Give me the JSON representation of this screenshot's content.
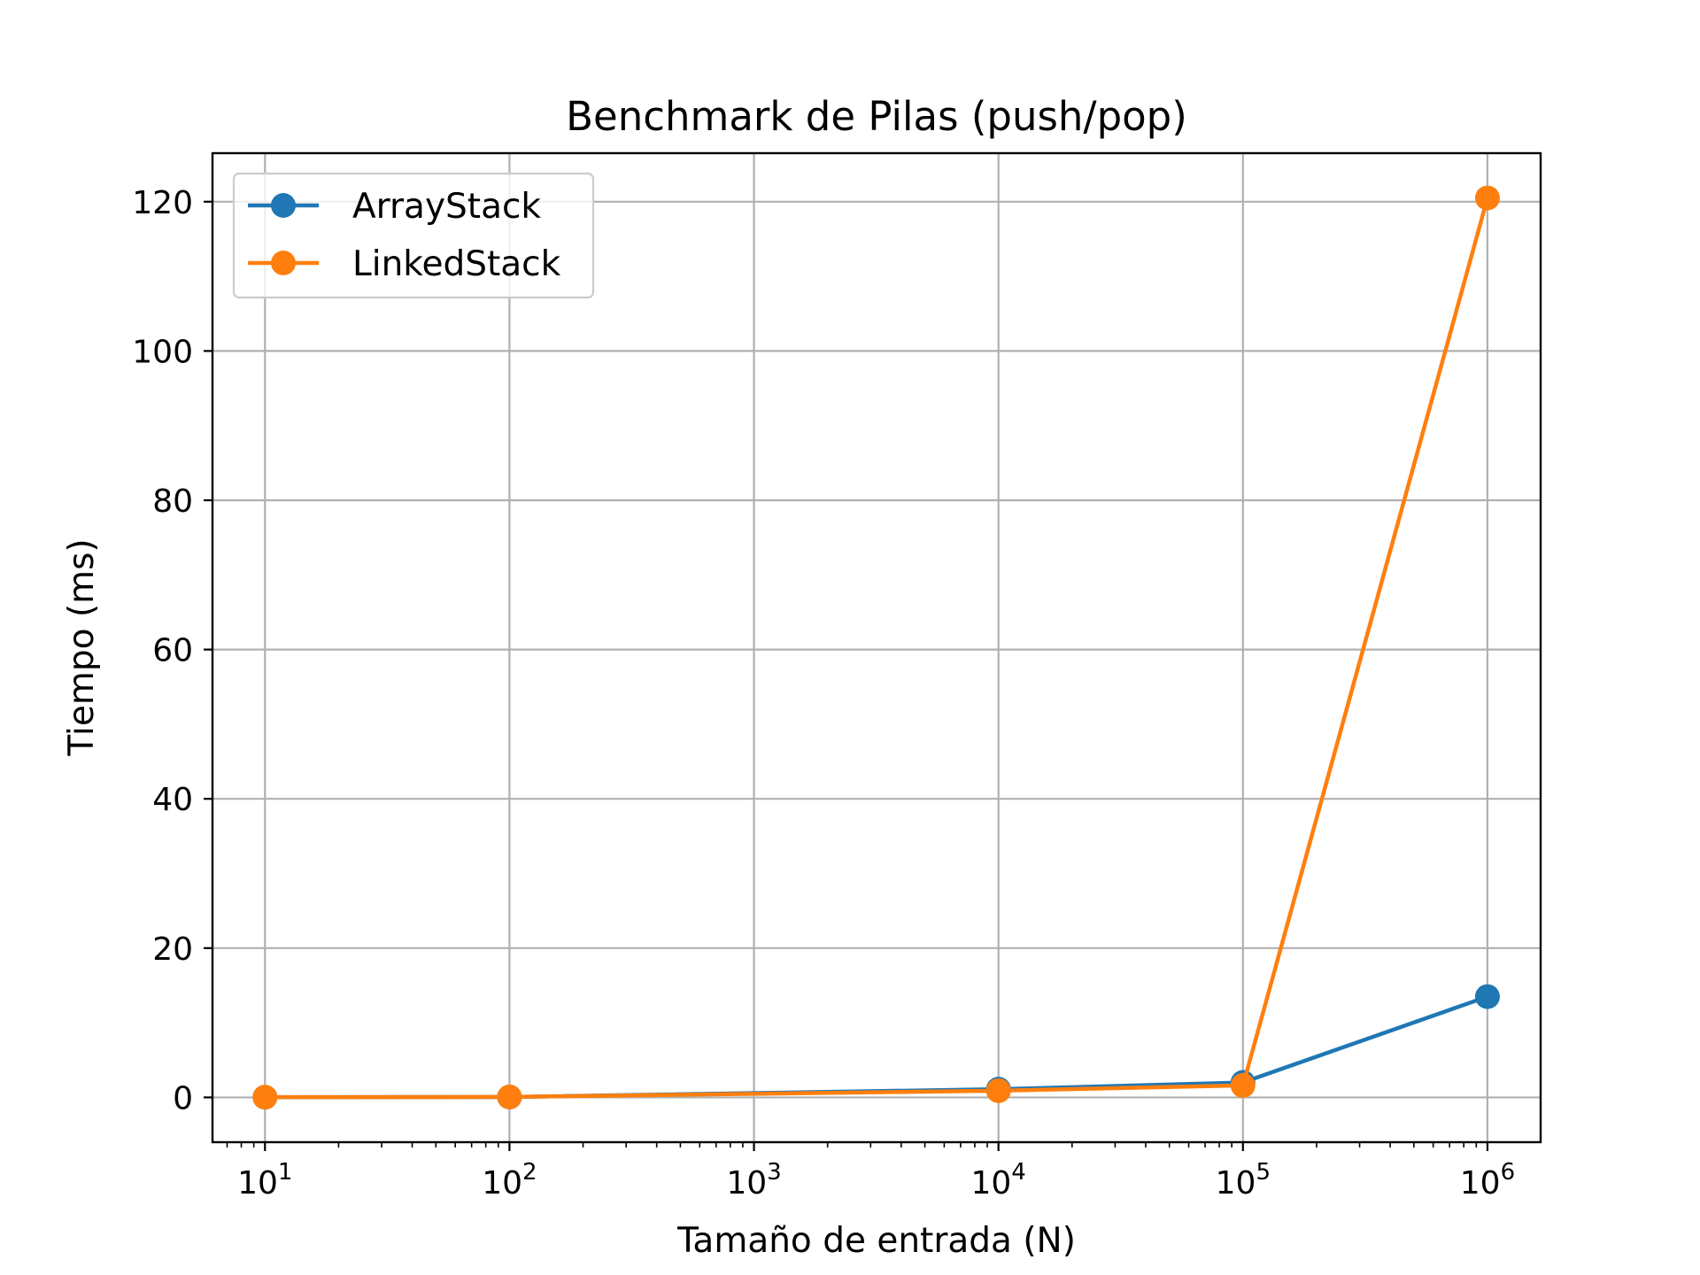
{
  "chart_data": {
    "type": "line",
    "title": "Benchmark de Pilas (push/pop)",
    "xlabel": "Tamaño de entrada (N)",
    "ylabel": "Tiempo (ms)",
    "x_scale": "log",
    "x_tick_exponents": [
      1,
      2,
      3,
      4,
      5,
      6
    ],
    "x_tick_base": "10",
    "xlim": [
      6.1,
      1650000
    ],
    "ylim": [
      -6,
      126.5
    ],
    "y_ticks": [
      0,
      20,
      40,
      60,
      80,
      100,
      120
    ],
    "x": [
      10,
      100,
      10000,
      100000,
      1000000
    ],
    "grid": true,
    "legend_position": "top-left",
    "series": [
      {
        "name": "ArrayStack",
        "color": "#1f77b4",
        "values": [
          0.02,
          0.05,
          1.1,
          2.0,
          13.5
        ]
      },
      {
        "name": "LinkedStack",
        "color": "#ff7f0e",
        "values": [
          0.03,
          0.06,
          0.9,
          1.6,
          120.5
        ]
      }
    ]
  }
}
